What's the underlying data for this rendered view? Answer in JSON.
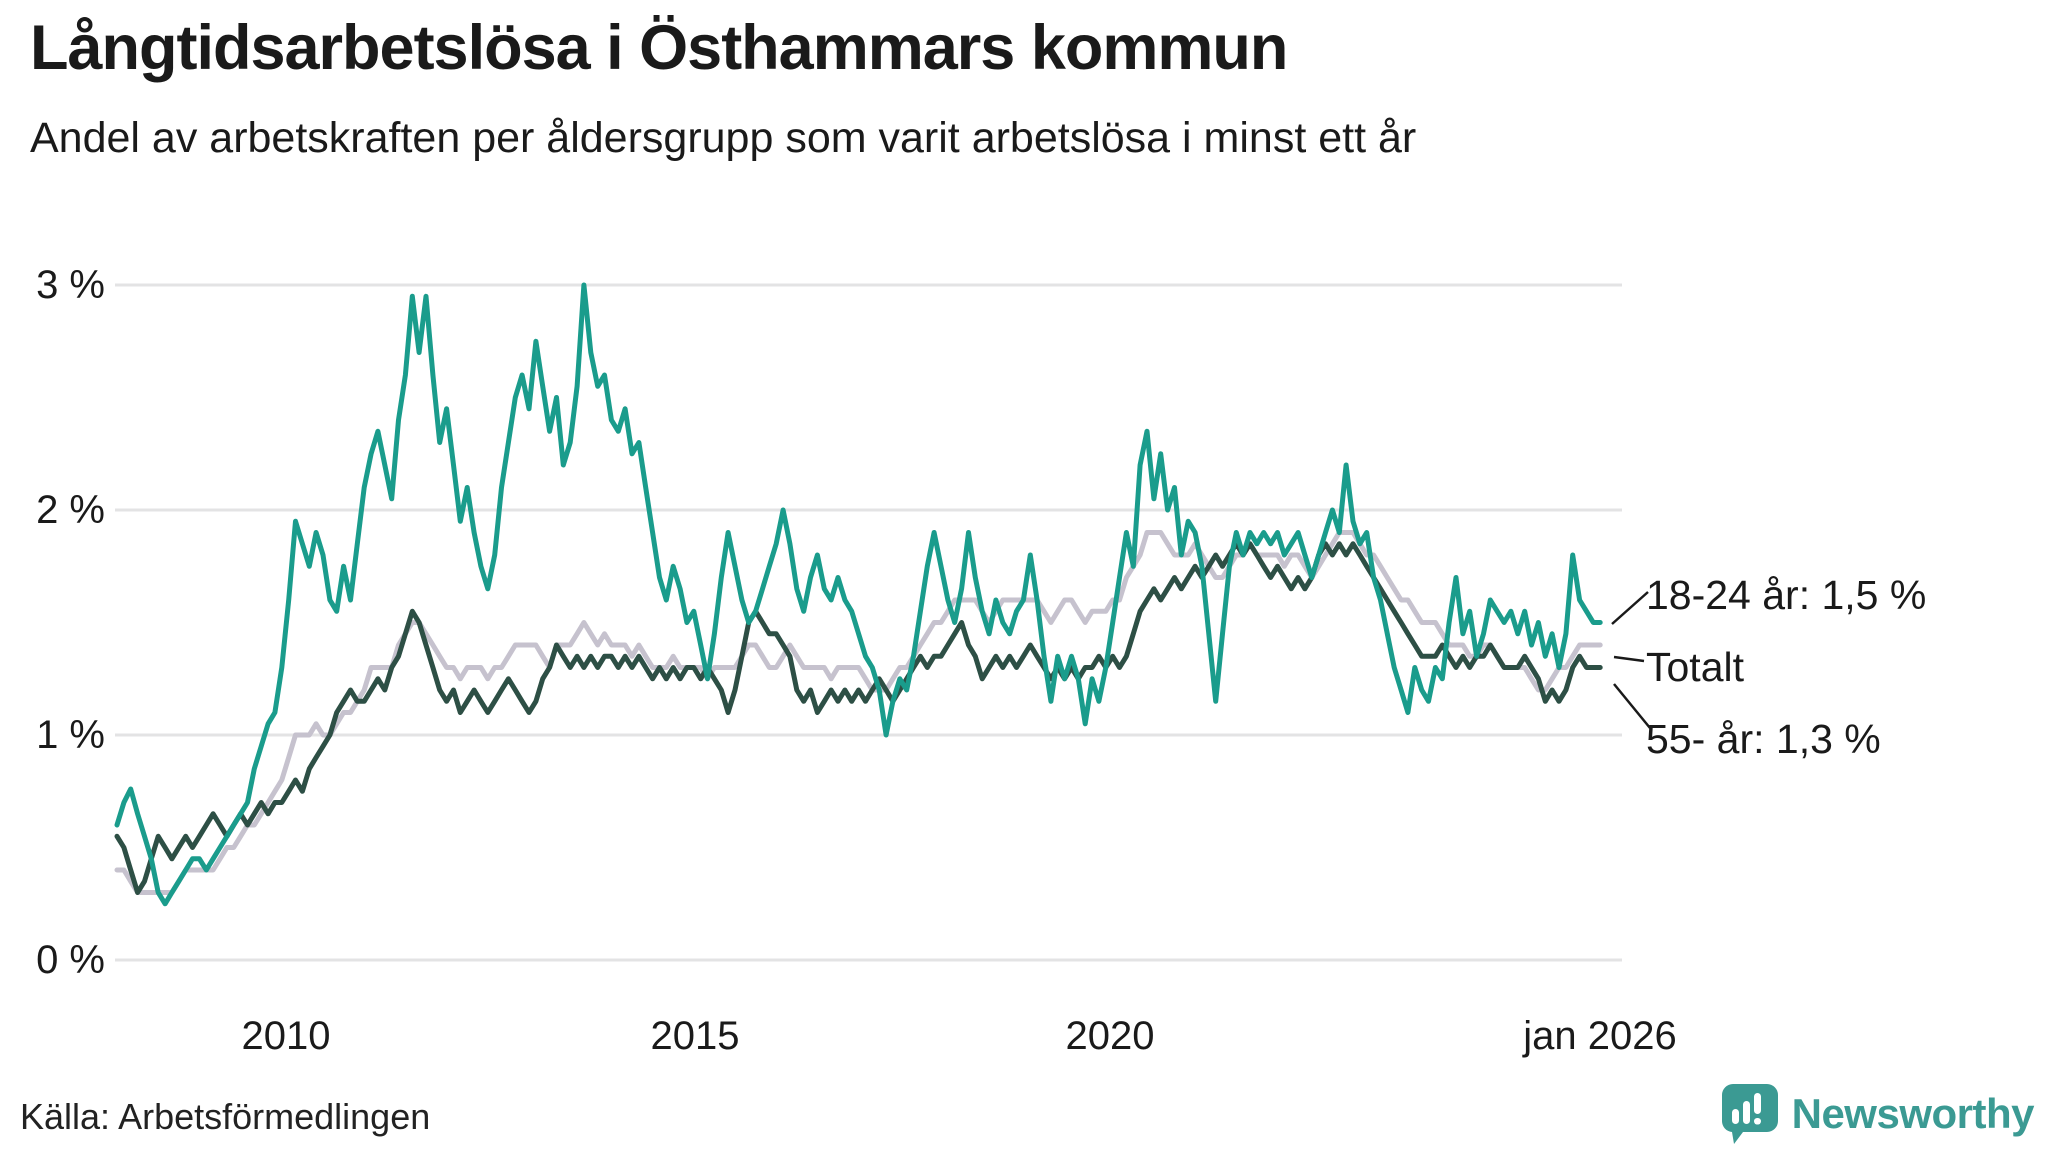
{
  "header": {
    "title": "Långtidsarbetslösa i Östhammars kommun",
    "subtitle": "Andel av arbetskraften per åldersgrupp som varit arbetslösa i minst ett år"
  },
  "footer": {
    "source": "Källa: Arbetsförmedlingen",
    "brand": "Newsworthy"
  },
  "colors": {
    "teal_line": "#1a9c8c",
    "dark_green_line": "#2d4f45",
    "total_gray_line": "#c6c2ce",
    "gridline": "#e3e3e4",
    "text": "#1a1a1a",
    "brand_teal": "#3b9a93",
    "leader_line": "#1a1a1a"
  },
  "chart_data": {
    "type": "line",
    "title": "Långtidsarbetslösa i Östhammars kommun",
    "subtitle": "Andel av arbetskraften per åldersgrupp som varit arbetslösa i minst ett år",
    "x_frequency": "monthly",
    "x_start_year": 2008,
    "x_end_year": 2026,
    "ylim": [
      0,
      3
    ],
    "grid": true,
    "legend_position": "right-of-line-ends",
    "yticks": [
      {
        "value": 3,
        "label": "3 %"
      },
      {
        "value": 2,
        "label": "2 %"
      },
      {
        "value": 1,
        "label": "1 %"
      },
      {
        "value": 0,
        "label": "0 %"
      }
    ],
    "xticks": [
      {
        "value": 2010,
        "label": "2010"
      },
      {
        "value": 2015,
        "label": "2015"
      },
      {
        "value": 2020,
        "label": "2020"
      },
      {
        "value": 2026,
        "label": "jan 2026"
      }
    ],
    "series": [
      {
        "name": "Totalt",
        "end_label": "Totalt",
        "end_value": 1.4,
        "color": "#c6c2ce",
        "values": [
          0.4,
          0.4,
          0.35,
          0.3,
          0.3,
          0.3,
          0.3,
          0.3,
          0.3,
          0.35,
          0.4,
          0.4,
          0.4,
          0.4,
          0.4,
          0.45,
          0.5,
          0.5,
          0.55,
          0.6,
          0.6,
          0.65,
          0.7,
          0.75,
          0.8,
          0.9,
          1.0,
          1.0,
          1.0,
          1.05,
          1.0,
          1.0,
          1.05,
          1.1,
          1.1,
          1.15,
          1.2,
          1.3,
          1.3,
          1.3,
          1.3,
          1.4,
          1.45,
          1.5,
          1.5,
          1.45,
          1.4,
          1.35,
          1.3,
          1.3,
          1.25,
          1.3,
          1.3,
          1.3,
          1.25,
          1.3,
          1.3,
          1.35,
          1.4,
          1.4,
          1.4,
          1.4,
          1.35,
          1.3,
          1.4,
          1.4,
          1.4,
          1.45,
          1.5,
          1.45,
          1.4,
          1.45,
          1.4,
          1.4,
          1.4,
          1.35,
          1.4,
          1.35,
          1.3,
          1.3,
          1.3,
          1.35,
          1.3,
          1.3,
          1.3,
          1.3,
          1.25,
          1.3,
          1.3,
          1.3,
          1.3,
          1.35,
          1.4,
          1.4,
          1.35,
          1.3,
          1.3,
          1.35,
          1.4,
          1.35,
          1.3,
          1.3,
          1.3,
          1.3,
          1.25,
          1.3,
          1.3,
          1.3,
          1.3,
          1.25,
          1.2,
          1.2,
          1.2,
          1.25,
          1.3,
          1.3,
          1.35,
          1.4,
          1.45,
          1.5,
          1.5,
          1.55,
          1.6,
          1.6,
          1.6,
          1.6,
          1.55,
          1.5,
          1.55,
          1.6,
          1.6,
          1.6,
          1.6,
          1.6,
          1.6,
          1.55,
          1.5,
          1.55,
          1.6,
          1.6,
          1.55,
          1.5,
          1.55,
          1.55,
          1.55,
          1.6,
          1.6,
          1.7,
          1.75,
          1.8,
          1.9,
          1.9,
          1.9,
          1.85,
          1.8,
          1.8,
          1.8,
          1.85,
          1.8,
          1.75,
          1.7,
          1.7,
          1.75,
          1.8,
          1.8,
          1.85,
          1.8,
          1.8,
          1.8,
          1.8,
          1.75,
          1.8,
          1.8,
          1.75,
          1.7,
          1.75,
          1.8,
          1.85,
          1.9,
          1.9,
          1.9,
          1.85,
          1.8,
          1.8,
          1.75,
          1.7,
          1.65,
          1.6,
          1.6,
          1.55,
          1.5,
          1.5,
          1.5,
          1.45,
          1.4,
          1.4,
          1.4,
          1.35,
          1.35,
          1.4,
          1.4,
          1.35,
          1.3,
          1.3,
          1.3,
          1.3,
          1.25,
          1.2,
          1.2,
          1.25,
          1.3,
          1.3,
          1.35,
          1.4,
          1.4,
          1.4,
          1.4
        ]
      },
      {
        "name": "55- år",
        "end_label": "55- år: 1,3 %",
        "end_value": 1.3,
        "color": "#2d4f45",
        "values": [
          0.55,
          0.5,
          0.4,
          0.3,
          0.35,
          0.45,
          0.55,
          0.5,
          0.45,
          0.5,
          0.55,
          0.5,
          0.55,
          0.6,
          0.65,
          0.6,
          0.55,
          0.6,
          0.65,
          0.6,
          0.65,
          0.7,
          0.65,
          0.7,
          0.7,
          0.75,
          0.8,
          0.75,
          0.85,
          0.9,
          0.95,
          1.0,
          1.1,
          1.15,
          1.2,
          1.15,
          1.15,
          1.2,
          1.25,
          1.2,
          1.3,
          1.35,
          1.45,
          1.55,
          1.5,
          1.4,
          1.3,
          1.2,
          1.15,
          1.2,
          1.1,
          1.15,
          1.2,
          1.15,
          1.1,
          1.15,
          1.2,
          1.25,
          1.2,
          1.15,
          1.1,
          1.15,
          1.25,
          1.3,
          1.4,
          1.35,
          1.3,
          1.35,
          1.3,
          1.35,
          1.3,
          1.35,
          1.35,
          1.3,
          1.35,
          1.3,
          1.35,
          1.3,
          1.25,
          1.3,
          1.25,
          1.3,
          1.25,
          1.3,
          1.3,
          1.25,
          1.3,
          1.25,
          1.2,
          1.1,
          1.2,
          1.35,
          1.5,
          1.55,
          1.5,
          1.45,
          1.45,
          1.4,
          1.35,
          1.2,
          1.15,
          1.2,
          1.1,
          1.15,
          1.2,
          1.15,
          1.2,
          1.15,
          1.2,
          1.15,
          1.2,
          1.25,
          1.2,
          1.15,
          1.2,
          1.25,
          1.3,
          1.35,
          1.3,
          1.35,
          1.35,
          1.4,
          1.45,
          1.5,
          1.4,
          1.35,
          1.25,
          1.3,
          1.35,
          1.3,
          1.35,
          1.3,
          1.35,
          1.4,
          1.35,
          1.3,
          1.25,
          1.3,
          1.25,
          1.3,
          1.25,
          1.3,
          1.3,
          1.35,
          1.3,
          1.35,
          1.3,
          1.35,
          1.45,
          1.55,
          1.6,
          1.65,
          1.6,
          1.65,
          1.7,
          1.65,
          1.7,
          1.75,
          1.7,
          1.75,
          1.8,
          1.75,
          1.8,
          1.85,
          1.8,
          1.85,
          1.8,
          1.75,
          1.7,
          1.75,
          1.7,
          1.65,
          1.7,
          1.65,
          1.7,
          1.8,
          1.85,
          1.8,
          1.85,
          1.8,
          1.85,
          1.8,
          1.75,
          1.7,
          1.65,
          1.6,
          1.55,
          1.5,
          1.45,
          1.4,
          1.35,
          1.35,
          1.35,
          1.4,
          1.35,
          1.3,
          1.35,
          1.3,
          1.35,
          1.35,
          1.4,
          1.35,
          1.3,
          1.3,
          1.3,
          1.35,
          1.3,
          1.25,
          1.15,
          1.2,
          1.15,
          1.2,
          1.3,
          1.35,
          1.3,
          1.3,
          1.3
        ]
      },
      {
        "name": "18-24 år",
        "end_label": "18-24 år: 1,5 %",
        "end_value": 1.5,
        "color": "#1a9c8c",
        "values": [
          0.6,
          0.7,
          0.76,
          0.65,
          0.55,
          0.45,
          0.3,
          0.25,
          0.3,
          0.35,
          0.4,
          0.45,
          0.45,
          0.4,
          0.45,
          0.5,
          0.55,
          0.6,
          0.65,
          0.7,
          0.85,
          0.95,
          1.05,
          1.1,
          1.3,
          1.6,
          1.95,
          1.85,
          1.75,
          1.9,
          1.8,
          1.6,
          1.55,
          1.75,
          1.6,
          1.85,
          2.1,
          2.25,
          2.35,
          2.2,
          2.05,
          2.4,
          2.6,
          2.95,
          2.7,
          2.95,
          2.6,
          2.3,
          2.45,
          2.2,
          1.95,
          2.1,
          1.9,
          1.75,
          1.65,
          1.8,
          2.1,
          2.3,
          2.5,
          2.6,
          2.45,
          2.75,
          2.55,
          2.35,
          2.5,
          2.2,
          2.3,
          2.55,
          3.0,
          2.7,
          2.55,
          2.6,
          2.4,
          2.35,
          2.45,
          2.25,
          2.3,
          2.1,
          1.9,
          1.7,
          1.6,
          1.75,
          1.65,
          1.5,
          1.55,
          1.4,
          1.25,
          1.45,
          1.7,
          1.9,
          1.75,
          1.6,
          1.5,
          1.55,
          1.65,
          1.75,
          1.85,
          2.0,
          1.85,
          1.65,
          1.55,
          1.7,
          1.8,
          1.65,
          1.6,
          1.7,
          1.6,
          1.55,
          1.45,
          1.35,
          1.3,
          1.2,
          1.0,
          1.15,
          1.25,
          1.2,
          1.35,
          1.55,
          1.75,
          1.9,
          1.75,
          1.6,
          1.5,
          1.65,
          1.9,
          1.7,
          1.55,
          1.45,
          1.6,
          1.5,
          1.45,
          1.55,
          1.6,
          1.8,
          1.6,
          1.35,
          1.15,
          1.35,
          1.25,
          1.35,
          1.25,
          1.05,
          1.25,
          1.15,
          1.3,
          1.5,
          1.7,
          1.9,
          1.75,
          2.2,
          2.35,
          2.05,
          2.25,
          2.0,
          2.1,
          1.8,
          1.95,
          1.9,
          1.75,
          1.45,
          1.15,
          1.45,
          1.75,
          1.9,
          1.8,
          1.9,
          1.85,
          1.9,
          1.85,
          1.9,
          1.8,
          1.85,
          1.9,
          1.8,
          1.7,
          1.8,
          1.9,
          2.0,
          1.9,
          2.2,
          1.95,
          1.85,
          1.9,
          1.7,
          1.6,
          1.45,
          1.3,
          1.2,
          1.1,
          1.3,
          1.2,
          1.15,
          1.3,
          1.25,
          1.5,
          1.7,
          1.45,
          1.55,
          1.35,
          1.45,
          1.6,
          1.55,
          1.5,
          1.55,
          1.45,
          1.55,
          1.4,
          1.5,
          1.35,
          1.45,
          1.3,
          1.45,
          1.8,
          1.6,
          1.55,
          1.5,
          1.5
        ]
      }
    ]
  }
}
